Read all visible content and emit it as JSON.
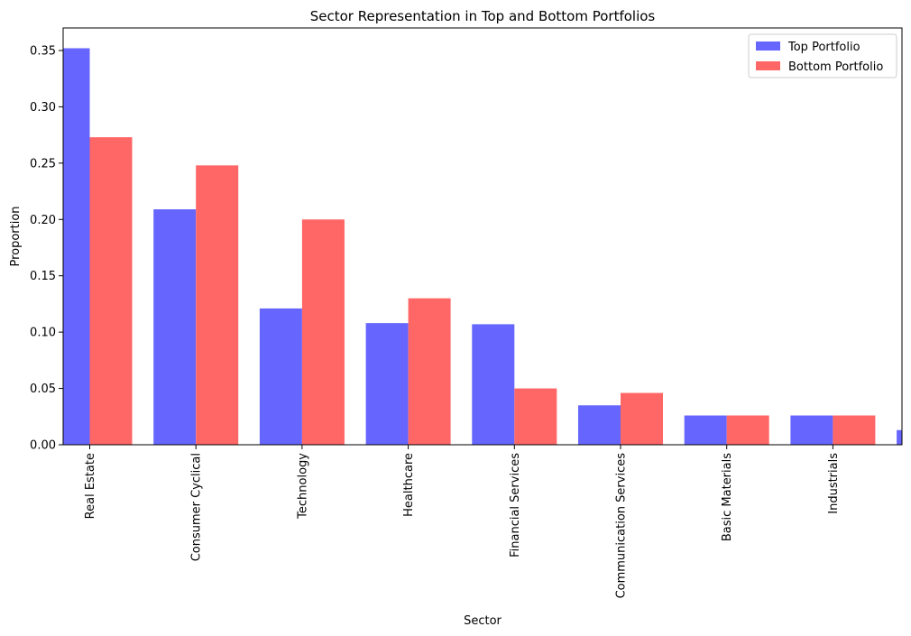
{
  "chart_data": {
    "type": "bar",
    "title": "Sector Representation in Top and Bottom Portfolios",
    "xlabel": "Sector",
    "ylabel": "Proportion",
    "ylim": [
      0,
      0.37
    ],
    "yticks": [
      "0.00",
      "0.05",
      "0.10",
      "0.15",
      "0.20",
      "0.25",
      "0.30",
      "0.35"
    ],
    "categories": [
      "Real Estate",
      "Consumer Cyclical",
      "Technology",
      "Healthcare",
      "Financial Services",
      "Communication Services",
      "Basic Materials",
      "Industrials",
      ""
    ],
    "series": [
      {
        "name": "Top Portfolio",
        "color": "#6666ff",
        "values": [
          0.352,
          0.209,
          0.121,
          0.108,
          0.107,
          0.035,
          0.026,
          0.026,
          0.013
        ]
      },
      {
        "name": "Bottom Portfolio",
        "color": "#ff6666",
        "values": [
          0.273,
          0.248,
          0.2,
          0.13,
          0.05,
          0.046,
          0.026,
          0.026,
          0
        ]
      }
    ],
    "legend_position": "top-right",
    "grid": false
  }
}
